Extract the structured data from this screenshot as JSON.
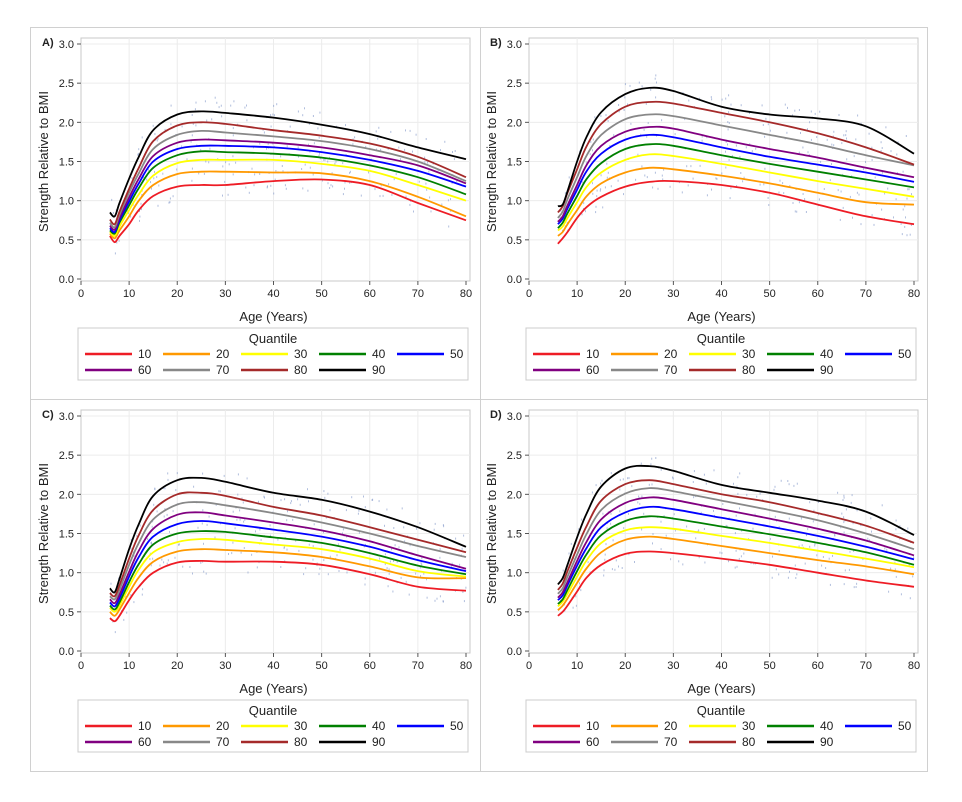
{
  "quantiles": [
    "10",
    "20",
    "30",
    "40",
    "50",
    "60",
    "70",
    "80",
    "90"
  ],
  "colors": {
    "10": "#ee1c25",
    "20": "#ff9900",
    "30": "#ffff00",
    "40": "#008000",
    "50": "#0000ff",
    "60": "#800080",
    "70": "#888888",
    "80": "#a52a2a",
    "90": "#000000"
  },
  "chart_data": [
    {
      "panel_label": "A)",
      "type": "line",
      "xlabel": "Age (Years)",
      "ylabel": "Strength Relative to BMI",
      "legend_title": "Quantile",
      "xlim": [
        0,
        80
      ],
      "ylim": [
        0,
        3
      ],
      "xticks": [
        "0",
        "10",
        "20",
        "30",
        "40",
        "50",
        "60",
        "70",
        "80"
      ],
      "yticks": [
        "0.0",
        "0.5",
        "1.0",
        "1.5",
        "2.0",
        "2.5",
        "3.0"
      ],
      "grid": true,
      "legend": "bottom",
      "x": [
        6,
        7,
        8,
        10,
        12,
        15,
        20,
        25,
        30,
        40,
        50,
        60,
        70,
        80
      ],
      "series": [
        {
          "name": "10",
          "values": [
            0.55,
            0.47,
            0.55,
            0.7,
            0.88,
            1.06,
            1.18,
            1.2,
            1.2,
            1.25,
            1.27,
            1.2,
            0.97,
            0.75
          ]
        },
        {
          "name": "20",
          "values": [
            0.58,
            0.52,
            0.62,
            0.8,
            1.0,
            1.2,
            1.34,
            1.37,
            1.37,
            1.36,
            1.35,
            1.25,
            1.05,
            0.8
          ]
        },
        {
          "name": "30",
          "values": [
            0.6,
            0.55,
            0.67,
            0.88,
            1.08,
            1.32,
            1.48,
            1.52,
            1.52,
            1.52,
            1.47,
            1.38,
            1.2,
            1.0
          ]
        },
        {
          "name": "40",
          "values": [
            0.62,
            0.58,
            0.72,
            0.94,
            1.16,
            1.42,
            1.58,
            1.63,
            1.62,
            1.6,
            1.55,
            1.45,
            1.3,
            1.08
          ]
        },
        {
          "name": "50",
          "values": [
            0.65,
            0.6,
            0.75,
            0.99,
            1.22,
            1.5,
            1.66,
            1.7,
            1.7,
            1.68,
            1.62,
            1.52,
            1.38,
            1.18
          ]
        },
        {
          "name": "60",
          "values": [
            0.68,
            0.63,
            0.78,
            1.04,
            1.28,
            1.57,
            1.74,
            1.78,
            1.77,
            1.74,
            1.68,
            1.58,
            1.45,
            1.22
          ]
        },
        {
          "name": "70",
          "values": [
            0.72,
            0.66,
            0.82,
            1.1,
            1.35,
            1.66,
            1.84,
            1.89,
            1.87,
            1.82,
            1.76,
            1.66,
            1.5,
            1.25
          ]
        },
        {
          "name": "80",
          "values": [
            0.76,
            0.7,
            0.86,
            1.15,
            1.42,
            1.76,
            1.96,
            2.0,
            1.98,
            1.9,
            1.83,
            1.73,
            1.56,
            1.3
          ]
        },
        {
          "name": "90",
          "values": [
            0.85,
            0.8,
            0.97,
            1.28,
            1.56,
            1.9,
            2.1,
            2.14,
            2.12,
            2.06,
            1.97,
            1.85,
            1.68,
            1.53
          ]
        }
      ]
    },
    {
      "panel_label": "B)",
      "type": "line",
      "xlabel": "Age (Years)",
      "ylabel": "Strength Relative to BMI",
      "legend_title": "Quantile",
      "xlim": [
        0,
        80
      ],
      "ylim": [
        0,
        3
      ],
      "xticks": [
        "0",
        "10",
        "20",
        "30",
        "40",
        "50",
        "60",
        "70",
        "80"
      ],
      "yticks": [
        "0.0",
        "0.5",
        "1.0",
        "1.5",
        "2.0",
        "2.5",
        "3.0"
      ],
      "grid": true,
      "legend": "bottom",
      "x": [
        6,
        7,
        8,
        10,
        12,
        15,
        20,
        25,
        30,
        40,
        50,
        60,
        70,
        80
      ],
      "series": [
        {
          "name": "10",
          "values": [
            0.45,
            0.52,
            0.6,
            0.78,
            0.92,
            1.05,
            1.18,
            1.24,
            1.25,
            1.2,
            1.1,
            0.95,
            0.8,
            0.7
          ]
        },
        {
          "name": "20",
          "values": [
            0.55,
            0.6,
            0.7,
            0.88,
            1.06,
            1.22,
            1.36,
            1.42,
            1.4,
            1.32,
            1.22,
            1.1,
            0.98,
            0.95
          ]
        },
        {
          "name": "30",
          "values": [
            0.62,
            0.67,
            0.78,
            0.98,
            1.18,
            1.36,
            1.52,
            1.59,
            1.57,
            1.47,
            1.36,
            1.25,
            1.15,
            1.05
          ]
        },
        {
          "name": "40",
          "values": [
            0.65,
            0.72,
            0.84,
            1.06,
            1.28,
            1.48,
            1.66,
            1.72,
            1.7,
            1.58,
            1.47,
            1.37,
            1.27,
            1.17
          ]
        },
        {
          "name": "50",
          "values": [
            0.7,
            0.77,
            0.9,
            1.14,
            1.38,
            1.6,
            1.78,
            1.84,
            1.81,
            1.68,
            1.56,
            1.46,
            1.36,
            1.24
          ]
        },
        {
          "name": "60",
          "values": [
            0.73,
            0.8,
            0.94,
            1.2,
            1.46,
            1.7,
            1.88,
            1.94,
            1.92,
            1.78,
            1.66,
            1.55,
            1.42,
            1.3
          ]
        },
        {
          "name": "70",
          "values": [
            0.78,
            0.86,
            1.02,
            1.3,
            1.58,
            1.84,
            2.04,
            2.1,
            2.08,
            1.96,
            1.84,
            1.72,
            1.58,
            1.45
          ]
        },
        {
          "name": "80",
          "values": [
            0.85,
            0.93,
            1.1,
            1.4,
            1.7,
            1.98,
            2.2,
            2.26,
            2.24,
            2.12,
            2.0,
            1.86,
            1.68,
            1.46
          ]
        },
        {
          "name": "90",
          "values": [
            0.93,
            0.95,
            1.12,
            1.5,
            1.82,
            2.13,
            2.36,
            2.44,
            2.4,
            2.2,
            2.1,
            2.05,
            1.95,
            1.6
          ]
        }
      ]
    },
    {
      "panel_label": "C)",
      "type": "line",
      "xlabel": "Age (Years)",
      "ylabel": "Strength Relative to BMI",
      "legend_title": "Quantile",
      "xlim": [
        0,
        80
      ],
      "ylim": [
        0,
        3
      ],
      "xticks": [
        "0",
        "10",
        "20",
        "30",
        "40",
        "50",
        "60",
        "70",
        "80"
      ],
      "yticks": [
        "0.0",
        "0.5",
        "1.0",
        "1.5",
        "2.0",
        "2.5",
        "3.0"
      ],
      "grid": true,
      "legend": "bottom",
      "x": [
        6,
        7,
        8,
        10,
        12,
        15,
        20,
        25,
        30,
        40,
        50,
        60,
        70,
        80
      ],
      "series": [
        {
          "name": "10",
          "values": [
            0.42,
            0.38,
            0.45,
            0.65,
            0.82,
            1.0,
            1.13,
            1.15,
            1.14,
            1.14,
            1.1,
            0.98,
            0.82,
            0.77
          ]
        },
        {
          "name": "20",
          "values": [
            0.5,
            0.45,
            0.53,
            0.74,
            0.94,
            1.14,
            1.27,
            1.3,
            1.29,
            1.26,
            1.2,
            1.08,
            0.94,
            0.93
          ]
        },
        {
          "name": "30",
          "values": [
            0.55,
            0.5,
            0.58,
            0.82,
            1.04,
            1.26,
            1.39,
            1.43,
            1.42,
            1.36,
            1.3,
            1.18,
            1.02,
            0.95
          ]
        },
        {
          "name": "40",
          "values": [
            0.58,
            0.53,
            0.62,
            0.88,
            1.11,
            1.36,
            1.5,
            1.53,
            1.52,
            1.45,
            1.38,
            1.25,
            1.09,
            0.98
          ]
        },
        {
          "name": "50",
          "values": [
            0.62,
            0.57,
            0.67,
            0.95,
            1.2,
            1.46,
            1.62,
            1.66,
            1.63,
            1.55,
            1.46,
            1.33,
            1.16,
            1.02
          ]
        },
        {
          "name": "60",
          "values": [
            0.66,
            0.61,
            0.72,
            1.01,
            1.28,
            1.56,
            1.74,
            1.77,
            1.73,
            1.64,
            1.54,
            1.4,
            1.22,
            1.05
          ]
        },
        {
          "name": "70",
          "values": [
            0.7,
            0.66,
            0.78,
            1.1,
            1.38,
            1.68,
            1.87,
            1.9,
            1.86,
            1.76,
            1.64,
            1.5,
            1.34,
            1.2
          ]
        },
        {
          "name": "80",
          "values": [
            0.74,
            0.7,
            0.84,
            1.18,
            1.48,
            1.8,
            2.0,
            2.02,
            1.98,
            1.84,
            1.73,
            1.58,
            1.42,
            1.26
          ]
        },
        {
          "name": "90",
          "values": [
            0.8,
            0.75,
            0.92,
            1.3,
            1.62,
            1.98,
            2.18,
            2.21,
            2.16,
            2.02,
            1.93,
            1.78,
            1.58,
            1.33
          ]
        }
      ]
    },
    {
      "panel_label": "D)",
      "type": "line",
      "xlabel": "Age (Years)",
      "ylabel": "Strength Relative to BMI",
      "legend_title": "Quantile",
      "xlim": [
        0,
        80
      ],
      "ylim": [
        0,
        3
      ],
      "xticks": [
        "0",
        "10",
        "20",
        "30",
        "40",
        "50",
        "60",
        "70",
        "80"
      ],
      "yticks": [
        "0.0",
        "0.5",
        "1.0",
        "1.5",
        "2.0",
        "2.5",
        "3.0"
      ],
      "grid": true,
      "legend": "bottom",
      "x": [
        6,
        7,
        8,
        10,
        12,
        15,
        20,
        25,
        30,
        40,
        50,
        60,
        70,
        80
      ],
      "series": [
        {
          "name": "10",
          "values": [
            0.45,
            0.5,
            0.58,
            0.76,
            0.94,
            1.1,
            1.24,
            1.27,
            1.25,
            1.18,
            1.1,
            1.0,
            0.9,
            0.82
          ]
        },
        {
          "name": "20",
          "values": [
            0.52,
            0.58,
            0.67,
            0.87,
            1.06,
            1.26,
            1.42,
            1.46,
            1.43,
            1.34,
            1.25,
            1.16,
            1.08,
            0.98
          ]
        },
        {
          "name": "30",
          "values": [
            0.57,
            0.63,
            0.73,
            0.95,
            1.16,
            1.38,
            1.54,
            1.58,
            1.56,
            1.47,
            1.38,
            1.28,
            1.18,
            1.07
          ]
        },
        {
          "name": "40",
          "values": [
            0.6,
            0.66,
            0.78,
            1.02,
            1.24,
            1.48,
            1.66,
            1.72,
            1.69,
            1.59,
            1.49,
            1.38,
            1.26,
            1.1
          ]
        },
        {
          "name": "50",
          "values": [
            0.65,
            0.71,
            0.84,
            1.09,
            1.32,
            1.58,
            1.77,
            1.84,
            1.81,
            1.7,
            1.59,
            1.47,
            1.33,
            1.17
          ]
        },
        {
          "name": "60",
          "values": [
            0.68,
            0.75,
            0.88,
            1.15,
            1.4,
            1.68,
            1.89,
            1.96,
            1.93,
            1.81,
            1.69,
            1.56,
            1.41,
            1.22
          ]
        },
        {
          "name": "70",
          "values": [
            0.73,
            0.8,
            0.95,
            1.23,
            1.5,
            1.8,
            2.01,
            2.08,
            2.04,
            1.92,
            1.8,
            1.67,
            1.5,
            1.3
          ]
        },
        {
          "name": "80",
          "values": [
            0.78,
            0.86,
            1.02,
            1.32,
            1.6,
            1.92,
            2.13,
            2.18,
            2.13,
            2.0,
            1.9,
            1.76,
            1.6,
            1.38
          ]
        },
        {
          "name": "90",
          "values": [
            0.85,
            0.93,
            1.1,
            1.45,
            1.76,
            2.1,
            2.33,
            2.36,
            2.3,
            2.12,
            2.02,
            1.92,
            1.78,
            1.48
          ]
        }
      ]
    }
  ]
}
